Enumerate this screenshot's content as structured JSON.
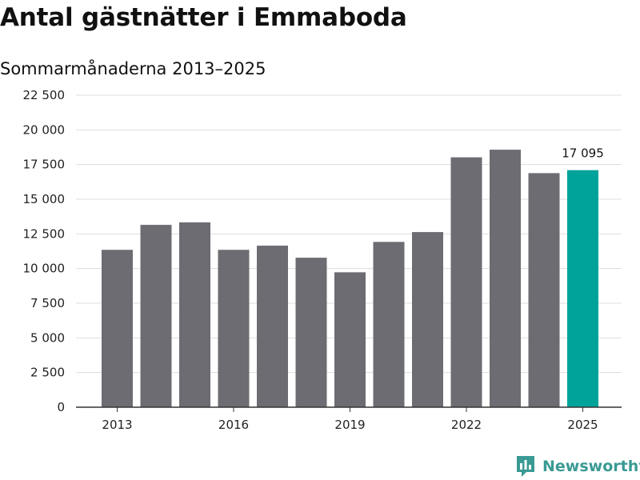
{
  "title": "Antal gästnätter i Emmaboda",
  "subtitle": "Sommarmånaderna 2013–2025",
  "brand": {
    "name": "Newsworthy",
    "icon": "newsworthy-logo-icon",
    "color": "#3a9a94"
  },
  "chart_data": {
    "type": "bar",
    "categories": [
      2013,
      2014,
      2015,
      2016,
      2017,
      2018,
      2019,
      2020,
      2021,
      2022,
      2023,
      2024,
      2025
    ],
    "values": [
      11350,
      13150,
      13330,
      11350,
      11650,
      10780,
      9730,
      11920,
      12630,
      18020,
      18570,
      16880,
      17095
    ],
    "ylim": [
      0,
      22500
    ],
    "yticks": [
      0,
      2500,
      5000,
      7500,
      10000,
      12500,
      15000,
      17500,
      20000,
      22500
    ],
    "ytick_labels": [
      "0",
      "2 500",
      "5 000",
      "7 500",
      "10 000",
      "12 500",
      "15 000",
      "17 500",
      "20 000",
      "22 500"
    ],
    "xtick_labels": [
      "2013",
      "2016",
      "2019",
      "2022",
      "2025"
    ],
    "xtick_indices": [
      0,
      3,
      6,
      9,
      12
    ],
    "grid": true,
    "colors": {
      "bar": "#6d6c72",
      "highlight": "#00a39a",
      "grid": "#dddddd",
      "axis": "#333333"
    },
    "highlight_index": 12,
    "annotations": [
      {
        "index": 12,
        "text": "17 095"
      }
    ]
  }
}
